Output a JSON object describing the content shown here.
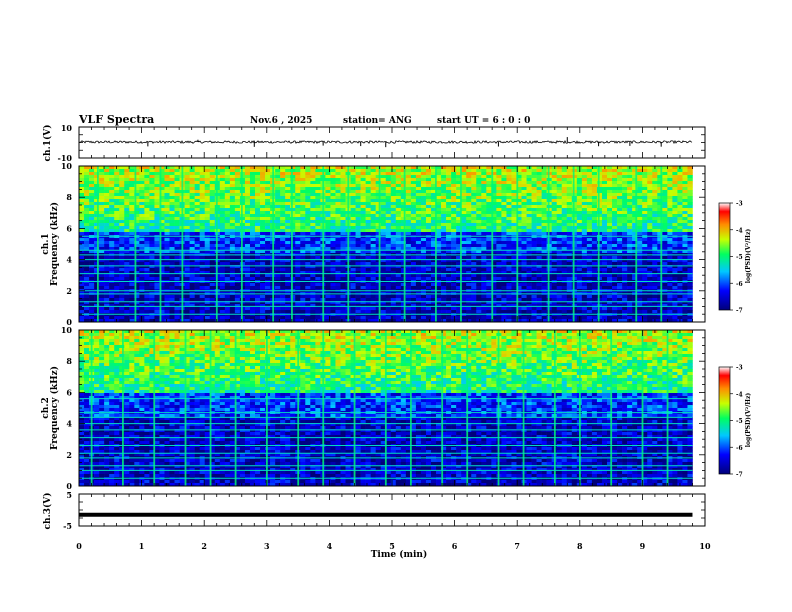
{
  "header": {
    "title": "VLF Spectra",
    "date": "Nov.6 , 2025",
    "station": "station= ANG",
    "start": "start UT = 6 : 0 : 0"
  },
  "colors": {
    "spec_low": "#000066",
    "spec_mid": "#00ffff",
    "spec_high": "#ff0000"
  },
  "chart_data": [
    {
      "type": "line",
      "name": "ch.1 waveform",
      "ylabel": "ch.1(V)",
      "ylim": [
        -10,
        10
      ],
      "yticks": [
        "10",
        "-10"
      ],
      "baseline_value": 0.3,
      "xlim": [
        0,
        10
      ],
      "spikes": [
        {
          "x": 1.1,
          "y": -2.5
        },
        {
          "x": 1.9,
          "y": 1.8
        },
        {
          "x": 2.8,
          "y": -2.8
        },
        {
          "x": 3.9,
          "y": -2.0
        },
        {
          "x": 4.5,
          "y": -2.3
        },
        {
          "x": 4.9,
          "y": -3.0
        },
        {
          "x": 6.7,
          "y": -2.6
        },
        {
          "x": 7.8,
          "y": 3.5
        },
        {
          "x": 8.3,
          "y": -2.4
        },
        {
          "x": 8.8,
          "y": -2.2
        },
        {
          "x": 9.3,
          "y": -2.7
        }
      ]
    },
    {
      "type": "heatmap",
      "name": "ch.1 spectrogram",
      "ylabel_top": "ch.1",
      "ylabel": "Frequency (kHz)",
      "ylim": [
        0,
        10
      ],
      "yticks": [
        "0",
        "2",
        "4",
        "6",
        "8",
        "10"
      ],
      "xlim": [
        0,
        9.8
      ],
      "noise_boundary_khz": 5.8,
      "narrowband_lines_khz": [
        0.5,
        1.0,
        1.3,
        1.8,
        2.0,
        2.6,
        3.1,
        3.6,
        4.0,
        4.3,
        4.6,
        5.5
      ],
      "sferic_times_min": [
        0.3,
        0.9,
        1.3,
        1.65,
        2.2,
        2.6,
        3.1,
        3.4,
        3.9,
        4.3,
        4.8,
        5.2,
        5.7,
        6.1,
        6.6,
        7.0,
        7.5,
        7.9,
        8.3,
        8.9,
        9.3
      ],
      "colorbar": {
        "label": "log(PSD)(V²/Hz)",
        "range": [
          -7,
          -3
        ],
        "ticks": [
          "-3",
          "-4",
          "-5",
          "-6",
          "-7"
        ]
      }
    },
    {
      "type": "heatmap",
      "name": "ch.2 spectrogram",
      "ylabel_top": "ch.2",
      "ylabel": "Frequency (kHz)",
      "ylim": [
        0,
        10
      ],
      "yticks": [
        "0",
        "2",
        "4",
        "6",
        "8",
        "10"
      ],
      "xlim": [
        0,
        9.8
      ],
      "noise_boundary_khz": 6.0,
      "narrowband_lines_khz": [
        0.5,
        1.0,
        1.3,
        1.8,
        2.1,
        2.6,
        3.1,
        3.6,
        4.0,
        4.4,
        4.7,
        5.6
      ],
      "sferic_times_min": [
        0.2,
        0.7,
        1.2,
        1.7,
        2.1,
        2.5,
        3.0,
        3.5,
        3.9,
        4.4,
        4.9,
        5.3,
        5.8,
        6.2,
        6.7,
        7.1,
        7.6,
        8.0,
        8.5,
        9.0,
        9.4
      ],
      "colorbar": {
        "label": "log(PSD)(V²/Hz)",
        "range": [
          -7,
          -3
        ],
        "ticks": [
          "-3",
          "-4",
          "-5",
          "-6",
          "-7"
        ]
      }
    },
    {
      "type": "line",
      "name": "ch.3 signal",
      "ylabel": "ch.3(V)",
      "ylim": [
        -5,
        5
      ],
      "yticks": [
        "5",
        "-5"
      ],
      "constant_value": -1.5,
      "xlim": [
        0,
        9.8
      ]
    }
  ],
  "xaxis": {
    "label": "Time (min)",
    "ticks": [
      "0",
      "1",
      "2",
      "3",
      "4",
      "5",
      "6",
      "7",
      "8",
      "9",
      "10"
    ],
    "range": [
      0,
      10
    ]
  }
}
